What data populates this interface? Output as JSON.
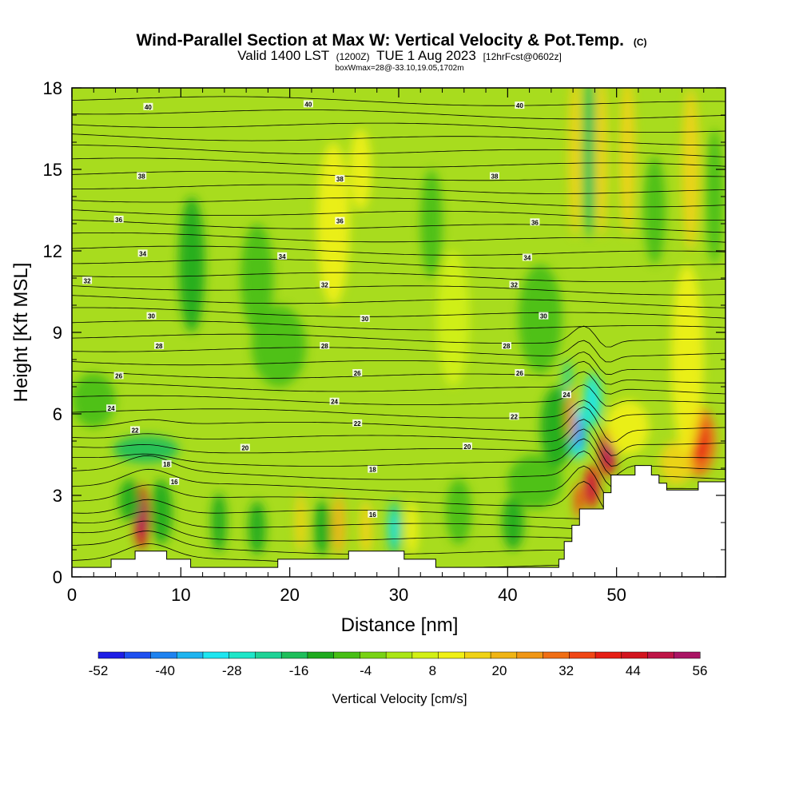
{
  "chart_data": {
    "type": "heatmap",
    "title": "Wind-Parallel Section at Max W: Vertical Velocity & Pot.Temp.",
    "copyright": "(C)",
    "subtitle_parts": [
      "Valid 1400 LST",
      "(1200Z)",
      "TUE 1 Aug 2023",
      "[12hrFcst@0602z]"
    ],
    "subtitle2": "boxWmax=28@-33.10,19.05,1702m",
    "xlabel": "Distance [nm]",
    "ylabel": "Height [Kft MSL]",
    "xlim": [
      0,
      60
    ],
    "ylim": [
      0,
      18
    ],
    "xticks": [
      0,
      10,
      20,
      30,
      40,
      50
    ],
    "yticks": [
      0,
      3,
      6,
      9,
      12,
      15,
      18
    ],
    "colorbar": {
      "label": "Vertical Velocity [cm/s]",
      "ticks": [
        -52,
        -40,
        -28,
        -16,
        -4,
        8,
        20,
        32,
        44,
        56
      ],
      "colors": [
        "#1e1ee6",
        "#1e50f0",
        "#1e82f0",
        "#1eb4f0",
        "#1ee6f0",
        "#1ee6c8",
        "#1ed296",
        "#1ebe5a",
        "#1eaa1e",
        "#46be14",
        "#78d214",
        "#aae614",
        "#d2f014",
        "#f0f014",
        "#f0d214",
        "#f0b414",
        "#f09614",
        "#f06e14",
        "#f04614",
        "#e61e14",
        "#d2141e",
        "#be1446",
        "#aa1464"
      ]
    },
    "theta_contour_labels": [
      {
        "v": "40",
        "x": 7,
        "y": 17.3
      },
      {
        "v": "40",
        "x": 21.7,
        "y": 17.4
      },
      {
        "v": "40",
        "x": 41.1,
        "y": 17.35
      },
      {
        "v": "38",
        "x": 6.4,
        "y": 14.75
      },
      {
        "v": "38",
        "x": 24.6,
        "y": 14.65
      },
      {
        "v": "38",
        "x": 38.8,
        "y": 14.75
      },
      {
        "v": "36",
        "x": 4.3,
        "y": 13.15
      },
      {
        "v": "36",
        "x": 24.6,
        "y": 13.1
      },
      {
        "v": "36",
        "x": 42.5,
        "y": 13.05
      },
      {
        "v": "34",
        "x": 6.5,
        "y": 11.9
      },
      {
        "v": "34",
        "x": 19.3,
        "y": 11.8
      },
      {
        "v": "34",
        "x": 41.8,
        "y": 11.75
      },
      {
        "v": "32",
        "x": 1.4,
        "y": 10.9
      },
      {
        "v": "32",
        "x": 23.2,
        "y": 10.75
      },
      {
        "v": "32",
        "x": 40.6,
        "y": 10.75
      },
      {
        "v": "30",
        "x": 7.3,
        "y": 9.6
      },
      {
        "v": "30",
        "x": 26.9,
        "y": 9.5
      },
      {
        "v": "30",
        "x": 43.3,
        "y": 9.6
      },
      {
        "v": "28",
        "x": 8,
        "y": 8.5
      },
      {
        "v": "28",
        "x": 23.2,
        "y": 8.5
      },
      {
        "v": "28",
        "x": 39.9,
        "y": 8.5
      },
      {
        "v": "26",
        "x": 4.3,
        "y": 7.4
      },
      {
        "v": "26",
        "x": 26.2,
        "y": 7.5
      },
      {
        "v": "26",
        "x": 41.1,
        "y": 7.5
      },
      {
        "v": "24",
        "x": 3.6,
        "y": 6.2
      },
      {
        "v": "24",
        "x": 24.1,
        "y": 6.45
      },
      {
        "v": "24",
        "x": 45.4,
        "y": 6.7
      },
      {
        "v": "22",
        "x": 5.8,
        "y": 5.4
      },
      {
        "v": "22",
        "x": 26.2,
        "y": 5.65
      },
      {
        "v": "22",
        "x": 40.6,
        "y": 5.9
      },
      {
        "v": "20",
        "x": 15.9,
        "y": 4.75
      },
      {
        "v": "20",
        "x": 36.3,
        "y": 4.8
      },
      {
        "v": "18",
        "x": 8.7,
        "y": 4.15
      },
      {
        "v": "18",
        "x": 27.6,
        "y": 3.95
      },
      {
        "v": "16",
        "x": 9.4,
        "y": 3.5
      },
      {
        "v": "16",
        "x": 27.6,
        "y": 2.3
      }
    ],
    "terrain_profile": [
      [
        0,
        0.35
      ],
      [
        3.6,
        0.35
      ],
      [
        3.6,
        0.65
      ],
      [
        5.8,
        0.65
      ],
      [
        5.8,
        0.95
      ],
      [
        8.7,
        0.95
      ],
      [
        8.7,
        0.65
      ],
      [
        10.9,
        0.65
      ],
      [
        10.9,
        0.35
      ],
      [
        18.9,
        0.35
      ],
      [
        18.9,
        0.65
      ],
      [
        25.4,
        0.65
      ],
      [
        25.4,
        0.95
      ],
      [
        30.5,
        0.95
      ],
      [
        30.5,
        0.65
      ],
      [
        33.4,
        0.65
      ],
      [
        33.4,
        0.35
      ],
      [
        44.7,
        0.35
      ],
      [
        44.7,
        0.65
      ],
      [
        45.2,
        0.65
      ],
      [
        45.2,
        1.3
      ],
      [
        45.9,
        1.3
      ],
      [
        45.9,
        1.9
      ],
      [
        46.6,
        1.9
      ],
      [
        46.6,
        2.5
      ],
      [
        48.8,
        2.5
      ],
      [
        48.8,
        3.1
      ],
      [
        49.5,
        3.1
      ],
      [
        49.5,
        3.75
      ],
      [
        51.7,
        3.75
      ],
      [
        51.7,
        4.1
      ],
      [
        53.2,
        4.1
      ],
      [
        53.2,
        3.75
      ],
      [
        53.9,
        3.75
      ],
      [
        53.9,
        3.45
      ],
      [
        54.6,
        3.45
      ],
      [
        54.6,
        3.2
      ],
      [
        57.5,
        3.2
      ],
      [
        57.5,
        3.5
      ],
      [
        60,
        3.5
      ]
    ],
    "velocity_features": [
      {
        "x": 6.4,
        "y": 2.2,
        "w": -4,
        "sx": 0.7,
        "sy": 1.2,
        "v": 44
      },
      {
        "x": 8.2,
        "y": 2.4,
        "sx": 1.0,
        "sy": 1.2,
        "v": -14
      },
      {
        "x": 6.8,
        "y": 4.7,
        "sx": 3.0,
        "sy": 0.5,
        "v": -16
      },
      {
        "x": 5.3,
        "y": 2.8,
        "sx": 1.0,
        "sy": 0.8,
        "v": -12
      },
      {
        "x": 13.5,
        "y": 2.0,
        "sx": 0.7,
        "sy": 1.1,
        "v": -12
      },
      {
        "x": 17.0,
        "y": 1.8,
        "sx": 0.8,
        "sy": 1.0,
        "v": -10
      },
      {
        "x": 21.0,
        "y": 2.0,
        "sx": 0.5,
        "sy": 1.1,
        "v": 14
      },
      {
        "x": 23.0,
        "y": 1.8,
        "sx": 0.8,
        "sy": 1.0,
        "v": -12
      },
      {
        "x": 24.5,
        "y": 1.9,
        "sx": 0.6,
        "sy": 1.1,
        "v": 20
      },
      {
        "x": 27.0,
        "y": 1.8,
        "sx": 0.6,
        "sy": 1.0,
        "v": 16
      },
      {
        "x": 29.6,
        "y": 1.8,
        "sx": 0.6,
        "sy": 1.0,
        "v": -22
      },
      {
        "x": 31.2,
        "y": 1.8,
        "sx": 0.6,
        "sy": 1.0,
        "v": 12
      },
      {
        "x": 35.5,
        "y": 2.4,
        "sx": 1.2,
        "sy": 1.2,
        "v": -8
      },
      {
        "x": 40.5,
        "y": 2.0,
        "sx": 1.0,
        "sy": 1.0,
        "v": -10
      },
      {
        "x": 42.5,
        "y": 3.5,
        "sx": 2.5,
        "sy": 1.0,
        "v": -8
      },
      {
        "x": 2.0,
        "y": 6.5,
        "sx": 2.0,
        "sy": 1.0,
        "v": -6
      },
      {
        "x": 11.0,
        "y": 11.5,
        "sx": 1.2,
        "sy": 2.5,
        "v": -12
      },
      {
        "x": 17.0,
        "y": 11.0,
        "sx": 1.5,
        "sy": 2.0,
        "v": -8
      },
      {
        "x": 19.0,
        "y": 8.5,
        "sx": 2.5,
        "sy": 1.5,
        "v": -8
      },
      {
        "x": 24.0,
        "y": 13.0,
        "sx": 1.5,
        "sy": 3.0,
        "v": 10
      },
      {
        "x": 26.5,
        "y": 15.0,
        "sx": 1.0,
        "sy": 1.5,
        "v": 10
      },
      {
        "x": 33.0,
        "y": 13.0,
        "sx": 1.0,
        "sy": 2.0,
        "v": -6
      },
      {
        "x": 35.0,
        "y": 9.5,
        "sx": 1.5,
        "sy": 2.5,
        "v": 8
      },
      {
        "x": 43.0,
        "y": 9.5,
        "sx": 2.0,
        "sy": 2.0,
        "v": -8
      },
      {
        "x": 44.5,
        "y": 5.5,
        "sx": 1.5,
        "sy": 1.5,
        "v": -10
      },
      {
        "x": 46.5,
        "y": 5.3,
        "sx": 0.8,
        "sy": 1.0,
        "v": -32
      },
      {
        "x": 47.8,
        "y": 6.5,
        "sx": 0.8,
        "sy": 1.0,
        "v": -24
      },
      {
        "x": 45.5,
        "y": 7.2,
        "sx": 0.4,
        "sy": 0.8,
        "v": -20
      },
      {
        "x": 49.2,
        "y": 4.6,
        "sx": 0.8,
        "sy": 0.9,
        "v": 42
      },
      {
        "x": 47.7,
        "y": 3.3,
        "sx": 0.7,
        "sy": 0.8,
        "v": 38
      },
      {
        "x": 46.5,
        "y": 2.8,
        "sx": 0.4,
        "sy": 0.7,
        "v": 28
      },
      {
        "x": 45.8,
        "y": 6.0,
        "sx": 0.4,
        "sy": 1.0,
        "v": 22
      },
      {
        "x": 51.0,
        "y": 5.5,
        "sx": 2.0,
        "sy": 1.0,
        "v": 10
      },
      {
        "x": 57.5,
        "y": 5.0,
        "sx": 1.6,
        "sy": 1.3,
        "v": 28
      },
      {
        "x": 55.5,
        "y": 4.2,
        "sx": 1.5,
        "sy": 0.8,
        "v": 16
      },
      {
        "x": 56.5,
        "y": 8.0,
        "sx": 1.5,
        "sy": 3.5,
        "v": 12
      },
      {
        "x": 47.5,
        "y": 15.5,
        "sx": 0.6,
        "sy": 3.0,
        "v": -18
      },
      {
        "x": 46.2,
        "y": 15.5,
        "sx": 0.6,
        "sy": 3.0,
        "v": 14
      },
      {
        "x": 48.6,
        "y": 15.5,
        "sx": 0.6,
        "sy": 3.0,
        "v": 14
      },
      {
        "x": 51.0,
        "y": 15.5,
        "sx": 0.7,
        "sy": 3.0,
        "v": 18
      },
      {
        "x": 53.5,
        "y": 13.5,
        "sx": 1.0,
        "sy": 2.0,
        "v": -8
      },
      {
        "x": 56.8,
        "y": 15.0,
        "sx": 0.8,
        "sy": 3.0,
        "v": 14
      },
      {
        "x": 59.0,
        "y": 14.0,
        "sx": 0.8,
        "sy": 2.5,
        "v": -8
      }
    ]
  }
}
